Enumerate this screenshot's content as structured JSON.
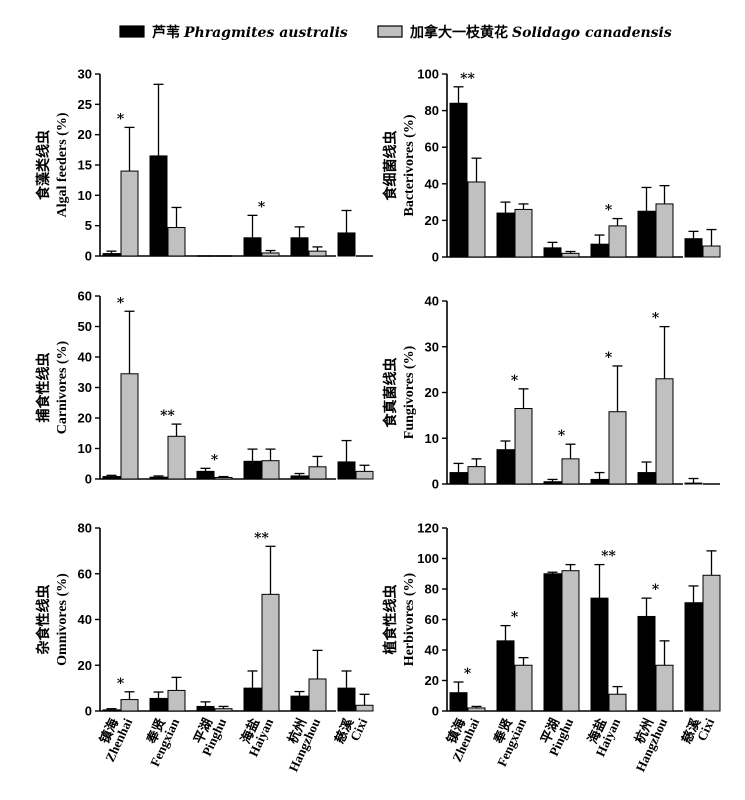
{
  "legend": [
    {
      "label_cn": "芦苇",
      "label_sci": "Phragmites australis",
      "color": "#000000"
    },
    {
      "label_cn": "加拿大一枝黄花",
      "label_sci": "Solidago canadensis",
      "color": "#c0c0c0"
    }
  ],
  "sites": [
    {
      "cn": "镇海",
      "en": "Zhenhai"
    },
    {
      "cn": "奉贤",
      "en": "Fengxian"
    },
    {
      "cn": "平湖",
      "en": "Pinghu"
    },
    {
      "cn": "海盐",
      "en": "Haiyan"
    },
    {
      "cn": "杭州",
      "en": "Hangzhou"
    },
    {
      "cn": "慈溪",
      "en": "Cixi"
    }
  ],
  "chart_data": [
    {
      "type": "bar",
      "ylabel_cn": "食藻类线虫",
      "ylabel_en": "Algal feeders (%)",
      "ylim": [
        0,
        30
      ],
      "yticks": [
        0,
        5,
        10,
        15,
        20,
        25,
        30
      ],
      "categories": [
        "Zhenhai",
        "Fengxian",
        "Pinghu",
        "Haiyan",
        "Hangzhou",
        "Cixi"
      ],
      "series": [
        {
          "name": "Phragmites australis",
          "values": [
            0.4,
            16.5,
            0,
            3.0,
            3.0,
            3.8
          ],
          "errors": [
            0.4,
            11.8,
            0,
            3.7,
            1.8,
            3.7
          ]
        },
        {
          "name": "Solidago canadensis",
          "values": [
            14.0,
            4.7,
            0,
            0.5,
            0.8,
            0
          ],
          "errors": [
            7.2,
            3.3,
            0,
            0.4,
            0.7,
            0
          ]
        }
      ],
      "significance": [
        {
          "category": "Zhenhai",
          "label": "*"
        },
        {
          "category": "Haiyan",
          "label": "*"
        }
      ]
    },
    {
      "type": "bar",
      "ylabel_cn": "食细菌线虫",
      "ylabel_en": "Bacterivores (%)",
      "ylim": [
        0,
        100
      ],
      "yticks": [
        0,
        20,
        40,
        60,
        80,
        100
      ],
      "categories": [
        "Zhenhai",
        "Fengxian",
        "Pinghu",
        "Haiyan",
        "Hangzhou",
        "Cixi"
      ],
      "series": [
        {
          "name": "Phragmites australis",
          "values": [
            84,
            24,
            5,
            7,
            25,
            10
          ],
          "errors": [
            9,
            6,
            3,
            5,
            13,
            4
          ]
        },
        {
          "name": "Solidago canadensis",
          "values": [
            41,
            26,
            2,
            17,
            29,
            6
          ],
          "errors": [
            13,
            3,
            1,
            4,
            10,
            9
          ]
        }
      ],
      "significance": [
        {
          "category": "Zhenhai",
          "label": "**"
        },
        {
          "category": "Haiyan",
          "label": "*"
        }
      ]
    },
    {
      "type": "bar",
      "ylabel_cn": "捕食性线虫",
      "ylabel_en": "Carnivores (%)",
      "ylim": [
        0,
        60
      ],
      "yticks": [
        0,
        10,
        20,
        30,
        40,
        50,
        60
      ],
      "categories": [
        "Zhenhai",
        "Fengxian",
        "Pinghu",
        "Haiyan",
        "Hangzhou",
        "Cixi"
      ],
      "series": [
        {
          "name": "Phragmites australis",
          "values": [
            0.8,
            0.6,
            2.5,
            5.8,
            1.0,
            5.6
          ],
          "errors": [
            0.4,
            0.4,
            1.0,
            4.0,
            0.8,
            7.0
          ]
        },
        {
          "name": "Solidago canadensis",
          "values": [
            34.5,
            14.0,
            0.5,
            6.0,
            4.0,
            2.5
          ],
          "errors": [
            20.5,
            4.0,
            0.3,
            3.8,
            3.4,
            2.0
          ]
        }
      ],
      "significance": [
        {
          "category": "Zhenhai",
          "label": "*"
        },
        {
          "category": "Fengxian",
          "label": "**"
        },
        {
          "category": "Pinghu",
          "label": "*"
        }
      ]
    },
    {
      "type": "bar",
      "ylabel_cn": "食真菌线虫",
      "ylabel_en": "Fungivores (%)",
      "ylim": [
        0,
        40
      ],
      "yticks": [
        0,
        10,
        20,
        30,
        40
      ],
      "categories": [
        "Zhenhai",
        "Fengxian",
        "Pinghu",
        "Haiyan",
        "Hangzhou",
        "Cixi"
      ],
      "series": [
        {
          "name": "Phragmites australis",
          "values": [
            2.5,
            7.5,
            0.5,
            1.0,
            2.5,
            0.2
          ],
          "errors": [
            2.0,
            1.9,
            0.5,
            1.5,
            2.3,
            1.0
          ]
        },
        {
          "name": "Solidago canadensis",
          "values": [
            3.8,
            16.5,
            5.5,
            15.8,
            23.0,
            0
          ],
          "errors": [
            1.7,
            4.3,
            3.2,
            10.0,
            11.4,
            0
          ]
        }
      ],
      "significance": [
        {
          "category": "Fengxian",
          "label": "*"
        },
        {
          "category": "Pinghu",
          "label": "*"
        },
        {
          "category": "Haiyan",
          "label": "*"
        },
        {
          "category": "Hangzhou",
          "label": "*"
        }
      ]
    },
    {
      "type": "bar",
      "ylabel_cn": "杂食性线虫",
      "ylabel_en": "Omnivores (%)",
      "ylim": [
        0,
        80
      ],
      "yticks": [
        0,
        20,
        40,
        60,
        80
      ],
      "categories": [
        "Zhenhai",
        "Fengxian",
        "Pinghu",
        "Haiyan",
        "Hangzhou",
        "Cixi"
      ],
      "series": [
        {
          "name": "Phragmites australis",
          "values": [
            0.5,
            5.5,
            2.0,
            10.0,
            6.5,
            10.0
          ],
          "errors": [
            0.5,
            2.8,
            2.0,
            7.5,
            2.0,
            7.5
          ]
        },
        {
          "name": "Solidago canadensis",
          "values": [
            5.0,
            9.0,
            1.0,
            51.0,
            14.0,
            2.5
          ],
          "errors": [
            3.4,
            5.7,
            1.0,
            21.0,
            12.5,
            4.8
          ]
        }
      ],
      "significance": [
        {
          "category": "Zhenhai",
          "label": "*"
        },
        {
          "category": "Haiyan",
          "label": "**"
        }
      ]
    },
    {
      "type": "bar",
      "ylabel_cn": "植食性线虫",
      "ylabel_en": "Herbivores (%)",
      "ylim": [
        0,
        120
      ],
      "yticks": [
        0,
        20,
        40,
        60,
        80,
        100,
        120
      ],
      "categories": [
        "Zhenhai",
        "Fengxian",
        "Pinghu",
        "Haiyan",
        "Hangzhou",
        "Cixi"
      ],
      "series": [
        {
          "name": "Phragmites australis",
          "values": [
            12,
            46,
            90,
            74,
            62,
            71
          ],
          "errors": [
            7,
            10,
            1,
            22,
            12,
            11
          ]
        },
        {
          "name": "Solidago canadensis",
          "values": [
            2,
            30,
            92,
            11,
            30,
            89
          ],
          "errors": [
            1,
            5,
            4,
            5,
            16,
            16
          ]
        }
      ],
      "significance": [
        {
          "category": "Zhenhai",
          "label": "*"
        },
        {
          "category": "Fengxian",
          "label": "*"
        },
        {
          "category": "Haiyan",
          "label": "**"
        },
        {
          "category": "Hangzhou",
          "label": "*"
        }
      ]
    }
  ]
}
